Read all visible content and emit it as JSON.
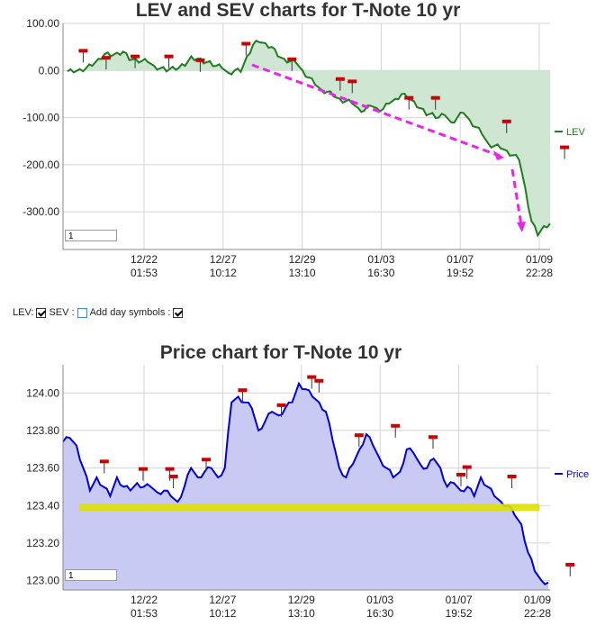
{
  "controls": {
    "lev_label": "LEV:",
    "lev_checked": true,
    "sev_label": "SEV :",
    "sev_checked": false,
    "day_symbols_label": "Add day symbols :",
    "day_symbols_checked": true,
    "page1": "1",
    "page2": "1"
  },
  "chart_data": [
    {
      "type": "area",
      "title": "LEV and SEV charts for T-Note 10 yr",
      "ylim": [
        -380,
        100
      ],
      "yticks": [
        "100.00",
        "0.00",
        "-100.00",
        "-200.00",
        "-300.00"
      ],
      "ytick_values": [
        100,
        0,
        -100,
        -200,
        -300
      ],
      "xticks": [
        {
          "date": "12/22",
          "time": "01:53"
        },
        {
          "date": "12/27",
          "time": "10:12"
        },
        {
          "date": "12/29",
          "time": "13:10"
        },
        {
          "date": "01/03",
          "time": "16:30"
        },
        {
          "date": "01/07",
          "time": "19:52"
        },
        {
          "date": "01/09",
          "time": "22:28"
        }
      ],
      "grid": true,
      "legend": "right",
      "colors": {
        "line": "#1e7e1e",
        "fill": "#cfe6d2",
        "trend": "#ee22ee",
        "marker": "#cc0000"
      },
      "series": [
        {
          "name": "LEV",
          "values": [
            -2,
            -4,
            3,
            5,
            10,
            25,
            35,
            30,
            38,
            40,
            22,
            25,
            20,
            18,
            10,
            5,
            -2,
            8,
            6,
            10,
            30,
            25,
            15,
            20,
            10,
            5,
            -5,
            0,
            -3,
            30,
            55,
            60,
            58,
            50,
            30,
            25,
            20,
            15,
            0,
            -15,
            -30,
            -40,
            -45,
            -55,
            -60,
            -65,
            -70,
            -80,
            -85,
            -75,
            -80,
            -82,
            -70,
            -60,
            -50,
            -60,
            -65,
            -80,
            -95,
            -90,
            -100,
            -95,
            -110,
            -100,
            -90,
            -105,
            -120,
            -135,
            -155,
            -160,
            -165,
            -170,
            -180,
            -190,
            -250,
            -320,
            -350,
            -330,
            -325
          ]
        }
      ],
      "markers": [
        -0.4,
        1,
        -50,
        29,
        0.5,
        26,
        7,
        78,
        13,
        44,
        8,
        29,
        22,
        77,
        23,
        33,
        45,
        31,
        22,
        44,
        9,
        67
      ]
    },
    {
      "type": "area",
      "title": "Price chart for T-Note 10 yr",
      "ylim": [
        122.95,
        124.15
      ],
      "yticks": [
        "124.00",
        "123.80",
        "123.60",
        "123.40",
        "123.20",
        "123.00"
      ],
      "ytick_values": [
        124.0,
        123.8,
        123.6,
        123.4,
        123.2,
        123.0
      ],
      "xticks": [
        {
          "date": "12/22",
          "time": "01:53"
        },
        {
          "date": "12/27",
          "time": "10:12"
        },
        {
          "date": "12/29",
          "time": "13:10"
        },
        {
          "date": "01/03",
          "time": "16:30"
        },
        {
          "date": "01/07",
          "time": "19:52"
        },
        {
          "date": "01/09",
          "time": "22:28"
        }
      ],
      "grid": true,
      "legend": "right",
      "support_level": 123.39,
      "colors": {
        "line": "#0000dd",
        "fill": "#c8caf4",
        "support": "#e0e000",
        "marker": "#cc0000"
      },
      "series": [
        {
          "name": "Price",
          "values": [
            123.74,
            123.76,
            123.72,
            123.6,
            123.48,
            123.55,
            123.5,
            123.45,
            123.55,
            123.5,
            123.48,
            123.52,
            123.5,
            123.5,
            123.47,
            123.48,
            123.45,
            123.42,
            123.5,
            123.6,
            123.55,
            123.58,
            123.6,
            123.55,
            123.6,
            123.95,
            123.98,
            123.95,
            123.92,
            123.8,
            123.85,
            123.9,
            123.88,
            123.92,
            123.95,
            124.05,
            124.02,
            123.98,
            123.95,
            123.9,
            123.75,
            123.6,
            123.55,
            123.62,
            123.7,
            123.78,
            123.72,
            123.65,
            123.6,
            123.55,
            123.58,
            123.7,
            123.68,
            123.62,
            123.6,
            123.65,
            123.6,
            123.5,
            123.52,
            123.48,
            123.5,
            123.45,
            123.55,
            123.5,
            123.45,
            123.42,
            123.4,
            123.35,
            123.3,
            123.15,
            123.05,
            123.0,
            122.99
          ]
        }
      ],
      "markers": [
        123.63,
        123.59,
        123.59,
        123.55,
        123.64,
        124.01,
        123.93,
        124.08,
        123.96,
        123.77,
        123.82,
        123.76,
        123.6,
        123.56,
        123.55,
        123.08
      ]
    }
  ]
}
